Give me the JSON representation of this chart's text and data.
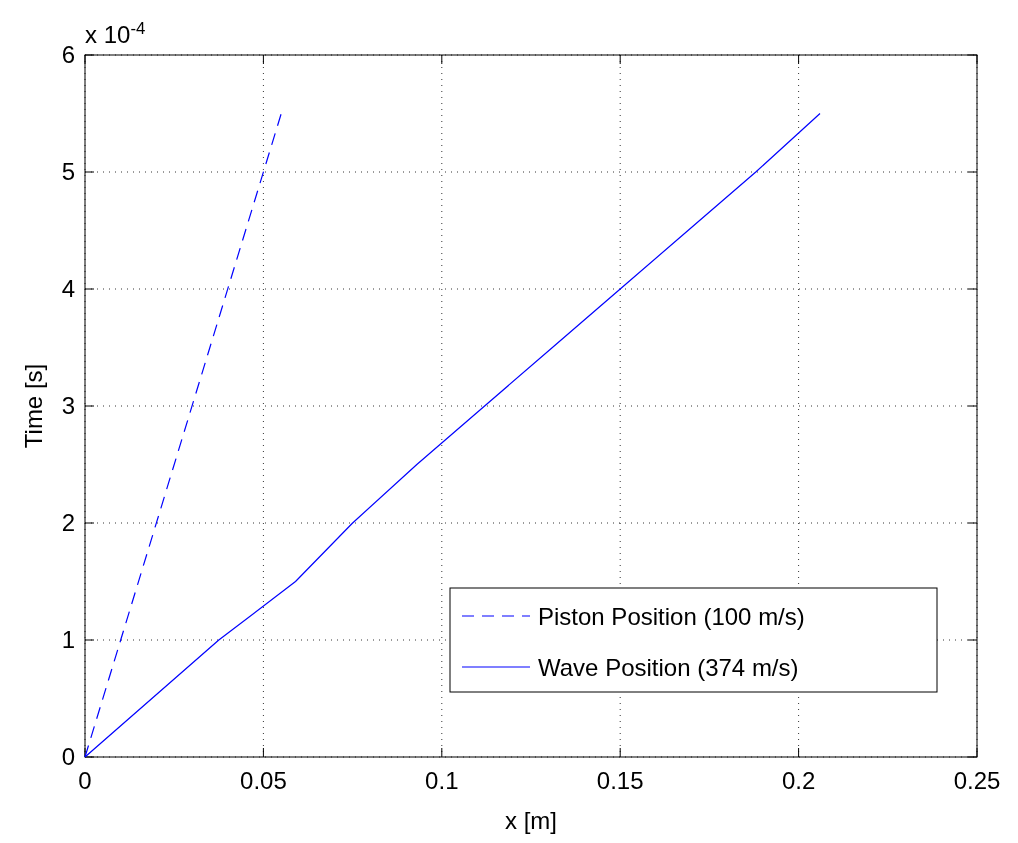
{
  "chart_data": {
    "type": "line",
    "xlabel": "x [m]",
    "ylabel": "Time [s]",
    "annotations": [
      "x 10$^{-4}$"
    ],
    "xlim": [
      0,
      0.25
    ],
    "xticks": [
      0,
      0.05,
      0.1,
      0.15,
      0.2,
      0.25
    ],
    "ylim": [
      0,
      6
    ],
    "yticks": [
      0,
      1,
      2,
      3,
      4,
      5,
      6
    ],
    "grid": true,
    "legend": "bottom right",
    "series": [
      {
        "name": "Piston Position (100 m/s)",
        "color": "#0000ff",
        "line_style": "dashed",
        "x": [
          0,
          0.055
        ],
        "values": [
          0,
          5.5
        ]
      },
      {
        "name": "Wave Position (374 m/s)",
        "color": "#0000ff",
        "line_style": "solid",
        "x": [
          0,
          0.0375,
          0.059,
          0.075,
          0.093,
          0.112,
          0.131,
          0.15,
          0.169,
          0.188,
          0.206
        ],
        "values": [
          0,
          1,
          1.5,
          2,
          2.5,
          3,
          3.5,
          4,
          4.5,
          5,
          5.5
        ]
      }
    ]
  }
}
